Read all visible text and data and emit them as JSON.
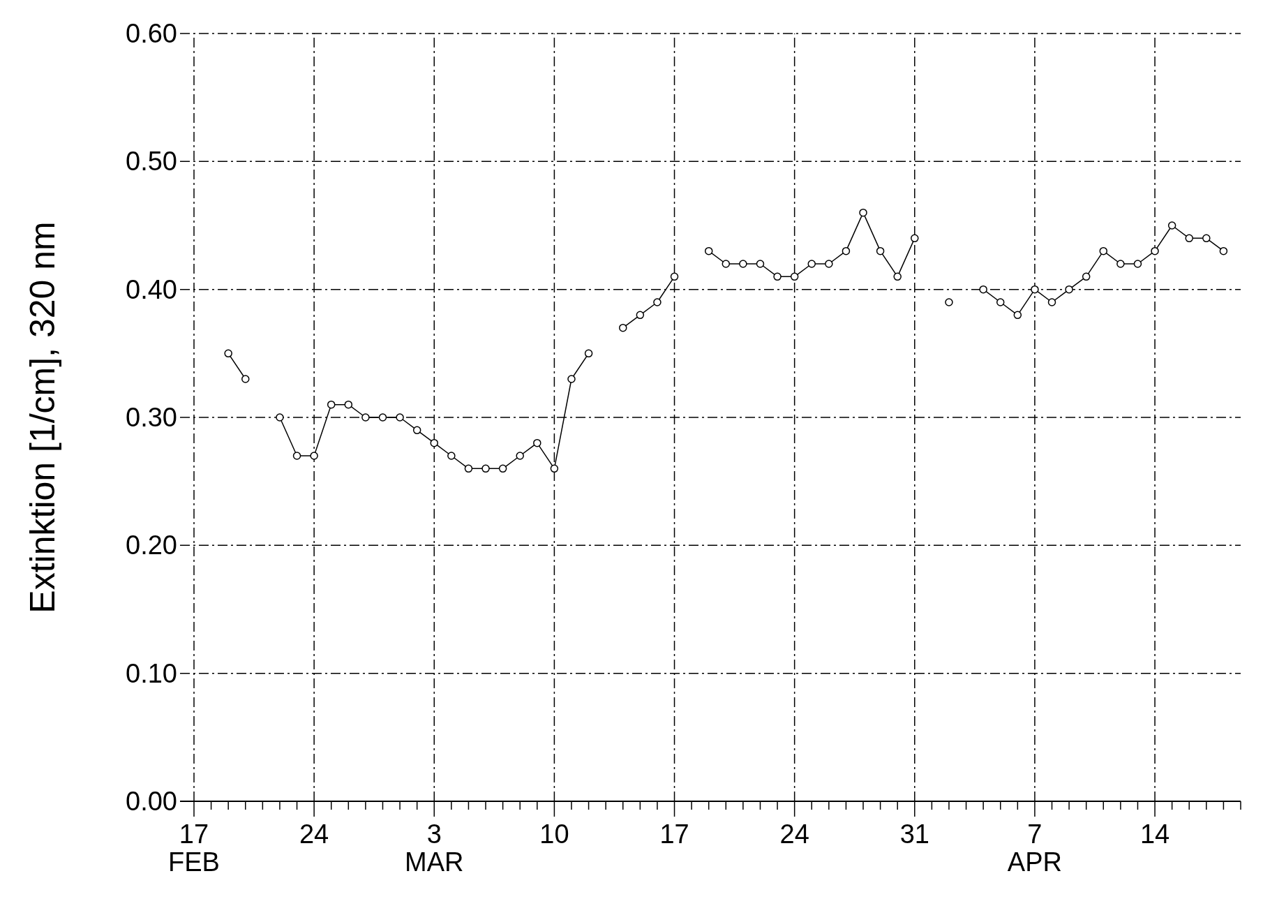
{
  "chart_data": {
    "type": "line",
    "ylabel": "Extinktion [1/cm], 320 nm",
    "xlim": [
      "--02-17",
      "--04-19"
    ],
    "xticks": [
      {
        "value": "--02-17",
        "label": "17\nFEB"
      },
      {
        "value": "--02-18",
        "label": null
      },
      {
        "value": "--02-19",
        "label": null
      },
      {
        "value": "--02-20",
        "label": null
      },
      {
        "value": "--02-21",
        "label": null
      },
      {
        "value": "--02-22",
        "label": null
      },
      {
        "value": "--02-23",
        "label": null
      },
      {
        "value": "--02-24",
        "label": "24"
      },
      {
        "value": "--02-25",
        "label": null
      },
      {
        "value": "--02-26",
        "label": null
      },
      {
        "value": "--02-27",
        "label": null
      },
      {
        "value": "--02-28",
        "label": null
      },
      {
        "value": "--03-01",
        "label": null
      },
      {
        "value": "--03-02",
        "label": null
      },
      {
        "value": "--03-03",
        "label": "3\nMAR"
      },
      {
        "value": "--03-04",
        "label": null
      },
      {
        "value": "--03-05",
        "label": null
      },
      {
        "value": "--03-06",
        "label": null
      },
      {
        "value": "--03-07",
        "label": null
      },
      {
        "value": "--03-08",
        "label": null
      },
      {
        "value": "--03-09",
        "label": null
      },
      {
        "value": "--03-10",
        "label": "10"
      },
      {
        "value": "--03-11",
        "label": null
      },
      {
        "value": "--03-12",
        "label": null
      },
      {
        "value": "--03-13",
        "label": null
      },
      {
        "value": "--03-14",
        "label": null
      },
      {
        "value": "--03-15",
        "label": null
      },
      {
        "value": "--03-16",
        "label": null
      },
      {
        "value": "--03-17",
        "label": "17"
      },
      {
        "value": "--03-18",
        "label": null
      },
      {
        "value": "--03-19",
        "label": null
      },
      {
        "value": "--03-20",
        "label": null
      },
      {
        "value": "--03-21",
        "label": null
      },
      {
        "value": "--03-22",
        "label": null
      },
      {
        "value": "--03-23",
        "label": null
      },
      {
        "value": "--03-24",
        "label": "24"
      },
      {
        "value": "--03-25",
        "label": null
      },
      {
        "value": "--03-26",
        "label": null
      },
      {
        "value": "--03-27",
        "label": null
      },
      {
        "value": "--03-28",
        "label": null
      },
      {
        "value": "--03-29",
        "label": null
      },
      {
        "value": "--03-30",
        "label": null
      },
      {
        "value": "--03-31",
        "label": "31"
      },
      {
        "value": "--04-01",
        "label": null
      },
      {
        "value": "--04-02",
        "label": null
      },
      {
        "value": "--04-03",
        "label": null
      },
      {
        "value": "--04-04",
        "label": null
      },
      {
        "value": "--04-05",
        "label": null
      },
      {
        "value": "--04-06",
        "label": null
      },
      {
        "value": "--04-07",
        "label": "7\nAPR"
      },
      {
        "value": "--04-08",
        "label": null
      },
      {
        "value": "--04-09",
        "label": null
      },
      {
        "value": "--04-10",
        "label": null
      },
      {
        "value": "--04-11",
        "label": null
      },
      {
        "value": "--04-12",
        "label": null
      },
      {
        "value": "--04-13",
        "label": null
      },
      {
        "value": "--04-14",
        "label": "14"
      },
      {
        "value": "--04-15",
        "label": null
      },
      {
        "value": "--04-16",
        "label": null
      },
      {
        "value": "--04-17",
        "label": null
      },
      {
        "value": "--04-18",
        "label": null
      },
      {
        "value": "--04-19",
        "label": null
      }
    ],
    "ylim": [
      0,
      0.6
    ],
    "yticks": [
      {
        "value": 0,
        "label": "0.00"
      },
      {
        "value": 0.1,
        "label": "0.10"
      },
      {
        "value": 0.2,
        "label": "0.20"
      },
      {
        "value": 0.3,
        "label": "0.30"
      },
      {
        "value": 0.4,
        "label": "0.40"
      },
      {
        "value": 0.5,
        "label": "0.50"
      },
      {
        "value": 0.6,
        "label": "0.60"
      }
    ],
    "grid": true,
    "marker": "circle",
    "line_style": "solid",
    "x": [
      "--02-19",
      "--02-20",
      "--02-21",
      "--02-22",
      "--02-23",
      "--02-24",
      "--02-25",
      "--02-26",
      "--02-27",
      "--02-28",
      "--03-01",
      "--03-02",
      "--03-03",
      "--03-04",
      "--03-05",
      "--03-06",
      "--03-07",
      "--03-08",
      "--03-09",
      "--03-10",
      "--03-11",
      "--03-12",
      "--03-13",
      "--03-14",
      "--03-15",
      "--03-16",
      "--03-17",
      "--03-18",
      "--03-19",
      "--03-20",
      "--03-21",
      "--03-22",
      "--03-23",
      "--03-24",
      "--03-25",
      "--03-26",
      "--03-27",
      "--03-28",
      "--03-29",
      "--03-30",
      "--03-31",
      "--04-01",
      "--04-02",
      "--04-03",
      "--04-04",
      "--04-05",
      "--04-06",
      "--04-07",
      "--04-08",
      "--04-09",
      "--04-10",
      "--04-11",
      "--04-12",
      "--04-13",
      "--04-14",
      "--04-15",
      "--04-16",
      "--04-17",
      "--04-18"
    ],
    "series": [
      {
        "color": "#000000",
        "values": [
          0.35,
          0.33,
          null,
          0.3,
          0.27,
          0.27,
          0.31,
          0.31,
          0.3,
          0.3,
          0.3,
          0.29,
          0.28,
          0.27,
          0.26,
          0.26,
          0.26,
          0.27,
          0.28,
          0.26,
          0.33,
          0.35,
          null,
          0.37,
          0.38,
          0.39,
          0.41,
          null,
          0.43,
          0.42,
          0.42,
          0.42,
          0.41,
          0.41,
          0.42,
          0.42,
          0.43,
          0.46,
          0.43,
          0.41,
          0.44,
          null,
          0.39,
          null,
          0.4,
          0.39,
          0.38,
          0.4,
          0.39,
          0.4,
          0.41,
          0.43,
          0.42,
          0.42,
          0.43,
          0.45,
          0.44,
          0.44,
          0.43
        ]
      }
    ]
  }
}
